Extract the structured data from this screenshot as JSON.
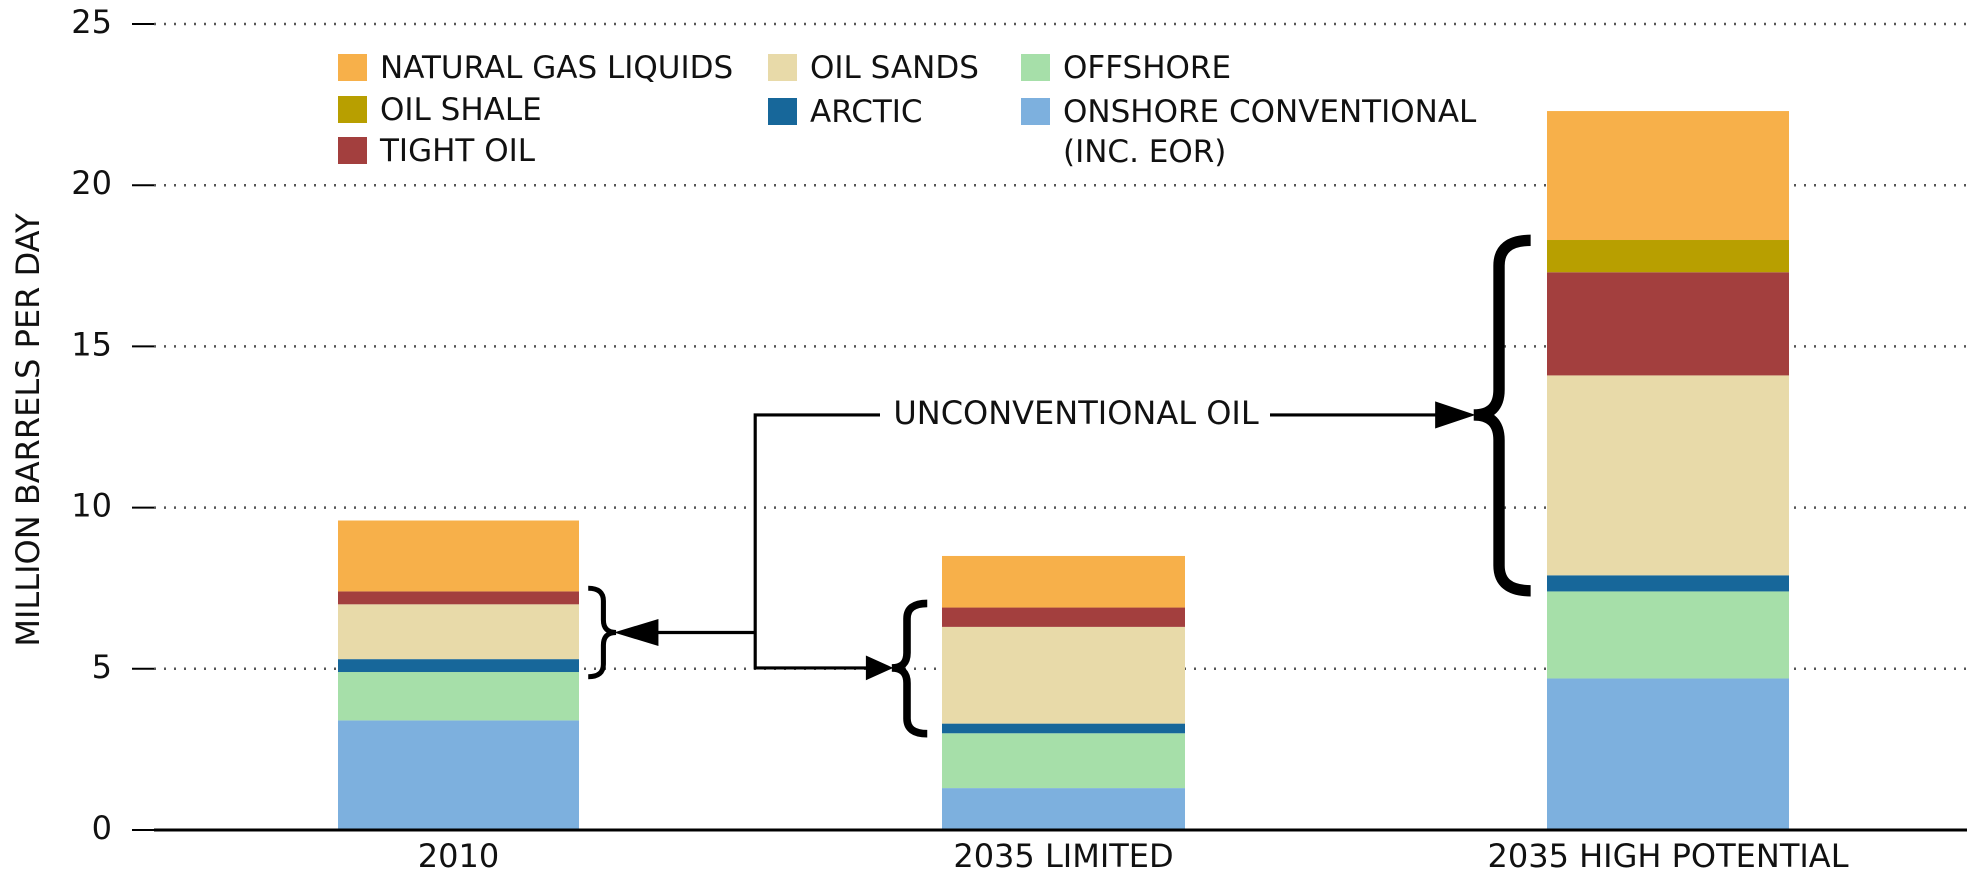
{
  "chart_data": {
    "type": "stacked-bar",
    "y_label": "MILLION BARRELS PER DAY",
    "annotation": "UNCONVENTIONAL OIL",
    "categories": [
      "2010",
      "2035 LIMITED",
      "2035 HIGH POTENTIAL"
    ],
    "series": [
      {
        "name": "ONSHORE CONVENTIONAL (INC. EOR)",
        "color": "#7db0de",
        "values": [
          3.4,
          1.3,
          4.7
        ]
      },
      {
        "name": "OFFSHORE",
        "color": "#a6dfa9",
        "values": [
          1.5,
          1.7,
          2.7
        ]
      },
      {
        "name": "ARCTIC",
        "color": "#17679a",
        "values": [
          0.4,
          0.3,
          0.5
        ]
      },
      {
        "name": "OIL SANDS",
        "color": "#e8daa9",
        "values": [
          1.7,
          3.0,
          6.2
        ]
      },
      {
        "name": "TIGHT OIL",
        "color": "#a33f3e",
        "values": [
          0.4,
          0.6,
          3.2
        ]
      },
      {
        "name": "OIL SHALE",
        "color": "#b89f00",
        "values": [
          0,
          0,
          1.0
        ]
      },
      {
        "name": "NATURAL GAS LIQUIDS",
        "color": "#f7b04a",
        "values": [
          2.2,
          1.6,
          4.0
        ]
      }
    ],
    "ylim": [
      0,
      25
    ],
    "yticks": [
      0,
      5,
      10,
      15,
      20,
      25
    ],
    "grid": true
  }
}
